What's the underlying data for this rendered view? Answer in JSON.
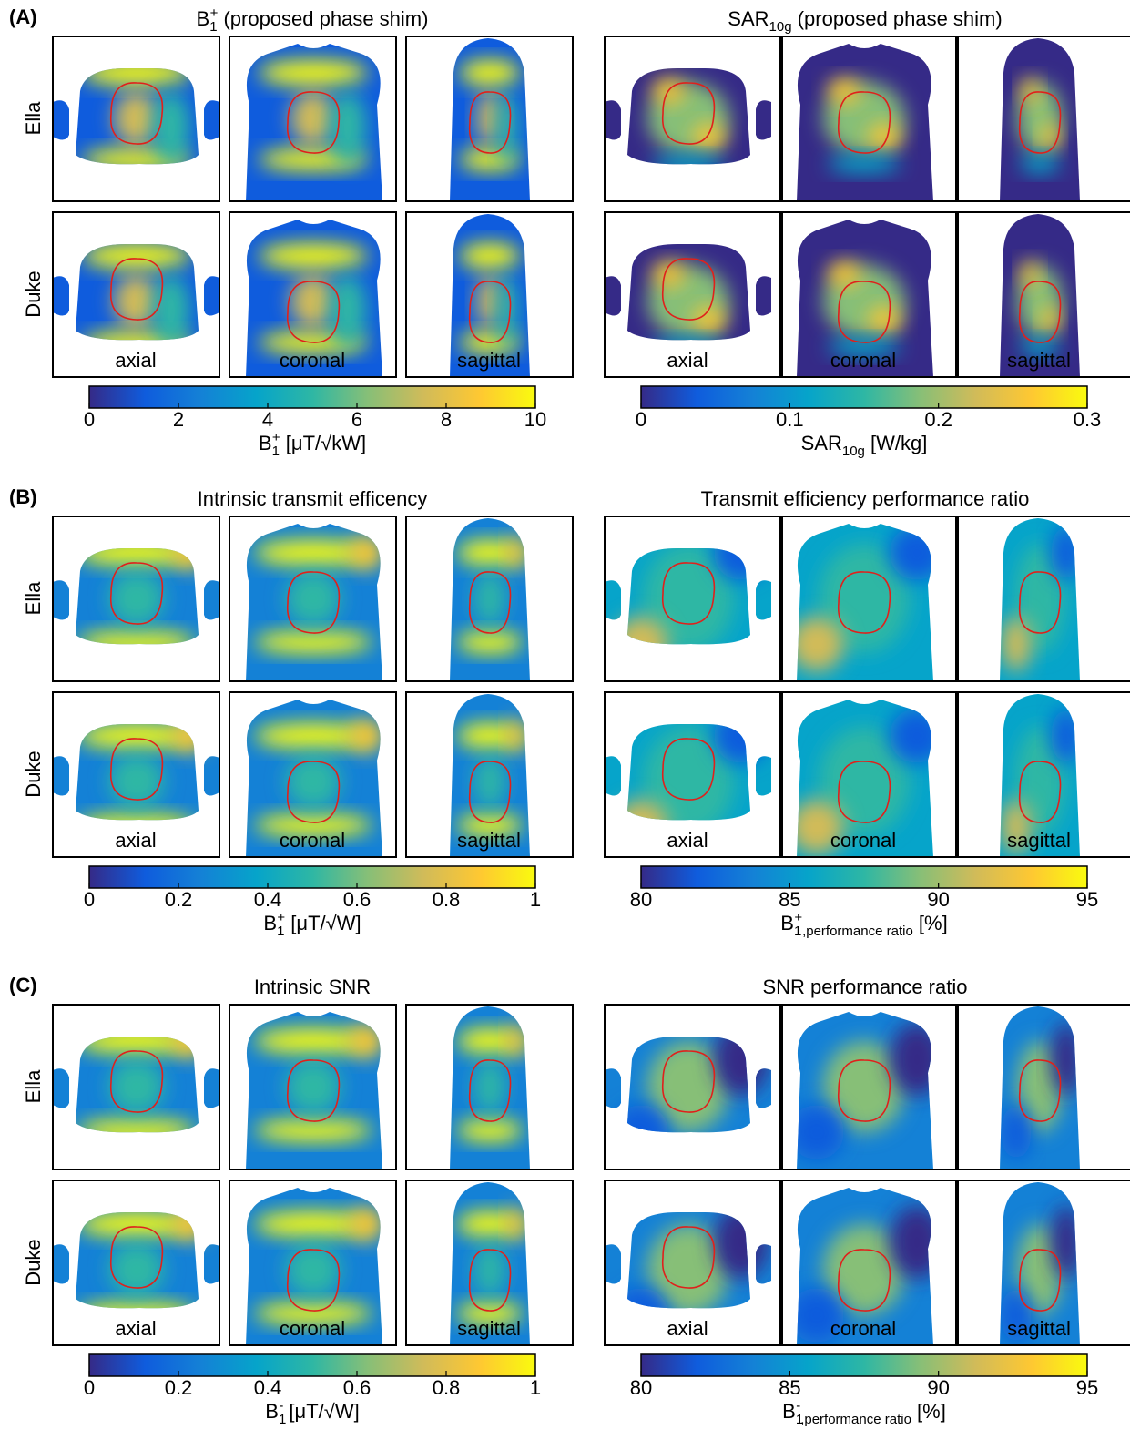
{
  "panels": [
    {
      "label": "(A)",
      "row_labels": [
        "Ella",
        "Duke"
      ],
      "left": {
        "title": [
          "B",
          "1",
          "+",
          " (proposed phase shim)"
        ],
        "view_labels": [
          "axial",
          "coronal",
          "sagittal"
        ],
        "colorbar": {
          "lim": [
            0,
            10
          ],
          "ticks": [
            0,
            2,
            4,
            6,
            8,
            10
          ],
          "label": [
            "B",
            "1",
            "+",
            " [μT/√kW]"
          ]
        }
      },
      "right": {
        "title": [
          "SAR",
          "10g",
          " (proposed phase shim)"
        ],
        "view_labels": [
          "axial",
          "coronal",
          "sagittal"
        ],
        "colorbar": {
          "lim": [
            0,
            0.3
          ],
          "ticks": [
            0,
            0.1,
            0.2,
            0.3
          ],
          "label": [
            "SAR",
            "10g",
            " [W/kg]"
          ]
        }
      }
    },
    {
      "label": "(B)",
      "row_labels": [
        "Ella",
        "Duke"
      ],
      "left": {
        "title": [
          "Intrinsic transmit efficency"
        ],
        "view_labels": [
          "axial",
          "coronal",
          "sagittal"
        ],
        "colorbar": {
          "lim": [
            0,
            1
          ],
          "ticks": [
            0,
            0.2,
            0.4,
            0.6,
            0.8,
            1
          ],
          "label": [
            "B",
            "1",
            "+",
            " [μT/√W]"
          ]
        }
      },
      "right": {
        "title": [
          "Transmit efficiency performance ratio"
        ],
        "view_labels": [
          "axial",
          "coronal",
          "sagittal"
        ],
        "colorbar": {
          "lim": [
            80,
            95
          ],
          "ticks": [
            80,
            85,
            90,
            95
          ],
          "label": [
            "B",
            "1",
            "+",
            ",performance ratio",
            " [%]"
          ]
        }
      }
    },
    {
      "label": "(C)",
      "row_labels": [
        "Ella",
        "Duke"
      ],
      "left": {
        "title": [
          "Intrinsic SNR"
        ],
        "view_labels": [
          "axial",
          "coronal",
          "sagittal"
        ],
        "colorbar": {
          "lim": [
            0,
            1
          ],
          "ticks": [
            0,
            0.2,
            0.4,
            0.6,
            0.8,
            1
          ],
          "label": [
            "B",
            "1",
            "-",
            " [μT/√W]"
          ]
        }
      },
      "right": {
        "title": [
          "SNR performance ratio"
        ],
        "view_labels": [
          "axial",
          "coronal",
          "sagittal"
        ],
        "colorbar": {
          "lim": [
            80,
            95
          ],
          "ticks": [
            80,
            85,
            90,
            95
          ],
          "label": [
            "B",
            "1",
            "-",
            ",performance ratio",
            " [%]"
          ]
        }
      }
    }
  ]
}
